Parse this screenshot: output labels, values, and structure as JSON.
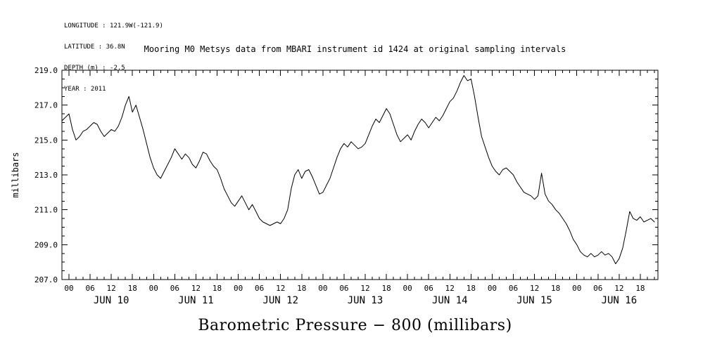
{
  "meta": {
    "longitude": "LONGITUDE : 121.9W(-121.9)",
    "latitude": "LATITUDE : 36.8N",
    "depth": "DEPTH (m) : -2.5",
    "year": "YEAR : 2011"
  },
  "title": "Mooring M0 Metsys data from MBARI instrument id 1424 at original sampling intervals",
  "footer_label": "Barometric Pressure − 800 (millibars)",
  "chart_data": {
    "type": "line",
    "title": "Mooring M0 Metsys data from MBARI instrument id 1424 at original sampling intervals",
    "xlabel": "Barometric Pressure − 800 (millibars)",
    "ylabel": "millibars",
    "x_unit": "hours since JUN 10 00:00 (2011)",
    "xlim": [
      -2,
      167
    ],
    "ylim": [
      207.0,
      219.0
    ],
    "y_ticks": [
      207.0,
      209.0,
      211.0,
      213.0,
      215.0,
      217.0,
      219.0
    ],
    "y_minor_step": 0.5,
    "x_major_step_hours": 6,
    "x_minor_step_hours": 2,
    "x_hour_labels": [
      "00",
      "06",
      "12",
      "18"
    ],
    "day_labels": [
      {
        "label": "JUN 10",
        "hour": 12
      },
      {
        "label": "JUN 11",
        "hour": 36
      },
      {
        "label": "JUN 12",
        "hour": 60
      },
      {
        "label": "JUN 13",
        "hour": 84
      },
      {
        "label": "JUN 14",
        "hour": 108
      },
      {
        "label": "JUN 15",
        "hour": 132
      },
      {
        "label": "JUN 16",
        "hour": 156
      }
    ],
    "grid": false,
    "legend": false,
    "line_color": "#000000",
    "series": [
      {
        "name": "barometric pressure - 800 (millibars)",
        "points": [
          [
            -2,
            216.1
          ],
          [
            -1,
            216.3
          ],
          [
            0,
            216.5
          ],
          [
            1,
            215.6
          ],
          [
            2,
            215.0
          ],
          [
            3,
            215.2
          ],
          [
            4,
            215.5
          ],
          [
            5,
            215.6
          ],
          [
            6,
            215.8
          ],
          [
            7,
            216.0
          ],
          [
            8,
            215.9
          ],
          [
            9,
            215.5
          ],
          [
            10,
            215.2
          ],
          [
            11,
            215.4
          ],
          [
            12,
            215.6
          ],
          [
            13,
            215.5
          ],
          [
            14,
            215.8
          ],
          [
            15,
            216.3
          ],
          [
            16,
            217.0
          ],
          [
            17,
            217.5
          ],
          [
            18,
            216.6
          ],
          [
            19,
            217.0
          ],
          [
            20,
            216.3
          ],
          [
            21,
            215.6
          ],
          [
            22,
            214.8
          ],
          [
            23,
            214.0
          ],
          [
            24,
            213.4
          ],
          [
            25,
            213.0
          ],
          [
            26,
            212.8
          ],
          [
            27,
            213.2
          ],
          [
            28,
            213.6
          ],
          [
            29,
            214.0
          ],
          [
            30,
            214.5
          ],
          [
            31,
            214.2
          ],
          [
            32,
            213.9
          ],
          [
            33,
            214.2
          ],
          [
            34,
            214.0
          ],
          [
            35,
            213.6
          ],
          [
            36,
            213.4
          ],
          [
            37,
            213.8
          ],
          [
            38,
            214.3
          ],
          [
            39,
            214.2
          ],
          [
            40,
            213.8
          ],
          [
            41,
            213.5
          ],
          [
            42,
            213.3
          ],
          [
            43,
            212.8
          ],
          [
            44,
            212.2
          ],
          [
            45,
            211.8
          ],
          [
            46,
            211.4
          ],
          [
            47,
            211.2
          ],
          [
            48,
            211.5
          ],
          [
            49,
            211.8
          ],
          [
            50,
            211.4
          ],
          [
            51,
            211.0
          ],
          [
            52,
            211.3
          ],
          [
            53,
            210.9
          ],
          [
            54,
            210.5
          ],
          [
            55,
            210.3
          ],
          [
            56,
            210.2
          ],
          [
            57,
            210.1
          ],
          [
            58,
            210.2
          ],
          [
            59,
            210.3
          ],
          [
            60,
            210.2
          ],
          [
            61,
            210.5
          ],
          [
            62,
            211.0
          ],
          [
            63,
            212.2
          ],
          [
            64,
            213.0
          ],
          [
            65,
            213.3
          ],
          [
            66,
            212.8
          ],
          [
            67,
            213.2
          ],
          [
            68,
            213.3
          ],
          [
            69,
            212.9
          ],
          [
            70,
            212.4
          ],
          [
            71,
            211.9
          ],
          [
            72,
            212.0
          ],
          [
            73,
            212.4
          ],
          [
            74,
            212.8
          ],
          [
            75,
            213.4
          ],
          [
            76,
            214.0
          ],
          [
            77,
            214.5
          ],
          [
            78,
            214.8
          ],
          [
            79,
            214.6
          ],
          [
            80,
            214.9
          ],
          [
            81,
            214.7
          ],
          [
            82,
            214.5
          ],
          [
            83,
            214.6
          ],
          [
            84,
            214.8
          ],
          [
            85,
            215.3
          ],
          [
            86,
            215.8
          ],
          [
            87,
            216.2
          ],
          [
            88,
            216.0
          ],
          [
            89,
            216.4
          ],
          [
            90,
            216.8
          ],
          [
            91,
            216.5
          ],
          [
            92,
            215.9
          ],
          [
            93,
            215.3
          ],
          [
            94,
            214.9
          ],
          [
            95,
            215.1
          ],
          [
            96,
            215.3
          ],
          [
            97,
            215.0
          ],
          [
            98,
            215.5
          ],
          [
            99,
            215.9
          ],
          [
            100,
            216.2
          ],
          [
            101,
            216.0
          ],
          [
            102,
            215.7
          ],
          [
            103,
            216.0
          ],
          [
            104,
            216.3
          ],
          [
            105,
            216.1
          ],
          [
            106,
            216.4
          ],
          [
            107,
            216.8
          ],
          [
            108,
            217.2
          ],
          [
            109,
            217.4
          ],
          [
            110,
            217.8
          ],
          [
            111,
            218.3
          ],
          [
            112,
            218.7
          ],
          [
            113,
            218.4
          ],
          [
            114,
            218.5
          ],
          [
            115,
            217.5
          ],
          [
            116,
            216.3
          ],
          [
            117,
            215.2
          ],
          [
            118,
            214.6
          ],
          [
            119,
            214.0
          ],
          [
            120,
            213.5
          ],
          [
            121,
            213.2
          ],
          [
            122,
            213.0
          ],
          [
            123,
            213.3
          ],
          [
            124,
            213.4
          ],
          [
            125,
            213.2
          ],
          [
            126,
            213.0
          ],
          [
            127,
            212.6
          ],
          [
            128,
            212.3
          ],
          [
            129,
            212.0
          ],
          [
            130,
            211.9
          ],
          [
            131,
            211.8
          ],
          [
            132,
            211.6
          ],
          [
            133,
            211.8
          ],
          [
            134,
            213.1
          ],
          [
            135,
            211.9
          ],
          [
            136,
            211.5
          ],
          [
            137,
            211.3
          ],
          [
            138,
            211.0
          ],
          [
            139,
            210.8
          ],
          [
            140,
            210.5
          ],
          [
            141,
            210.2
          ],
          [
            142,
            209.8
          ],
          [
            143,
            209.3
          ],
          [
            144,
            209.0
          ],
          [
            145,
            208.6
          ],
          [
            146,
            208.4
          ],
          [
            147,
            208.3
          ],
          [
            148,
            208.5
          ],
          [
            149,
            208.3
          ],
          [
            150,
            208.4
          ],
          [
            151,
            208.6
          ],
          [
            152,
            208.4
          ],
          [
            153,
            208.5
          ],
          [
            154,
            208.3
          ],
          [
            155,
            207.9
          ],
          [
            156,
            208.2
          ],
          [
            157,
            208.8
          ],
          [
            158,
            209.8
          ],
          [
            159,
            210.9
          ],
          [
            160,
            210.5
          ],
          [
            161,
            210.4
          ],
          [
            162,
            210.6
          ],
          [
            163,
            210.3
          ],
          [
            164,
            210.4
          ],
          [
            165,
            210.5
          ],
          [
            166,
            210.3
          ]
        ]
      }
    ]
  }
}
